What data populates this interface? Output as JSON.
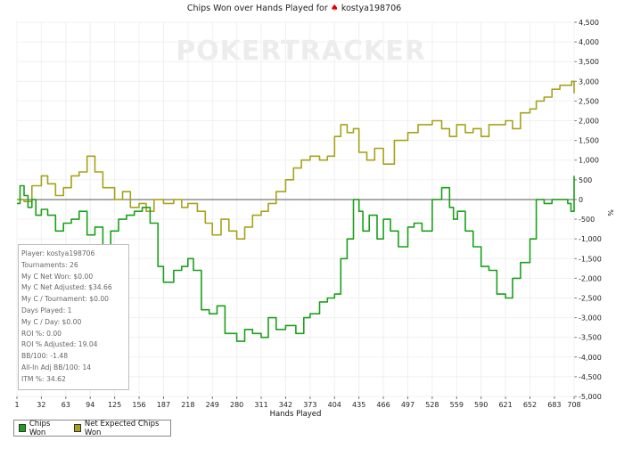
{
  "header": {
    "title_prefix": "Chips Won over Hands Played for",
    "suit_icon": "♠",
    "player": "kostya198706"
  },
  "watermark": {
    "text": "POKERTRACKER"
  },
  "stats": [
    "Player: kostya198706",
    "Tournaments: 26",
    "My C Net Won: $0.00",
    "My C Net Adjusted: $34.66",
    "My C / Tournament: $0.00",
    "Days Played: 1",
    "My C / Day: $0.00",
    "ROI %: 0.00",
    "ROI % Adjusted: 19.04",
    "BB/100: -1.48",
    "All-In Adj BB/100: 14",
    "ITM %: 34.62"
  ],
  "legend": [
    {
      "label": "Chips Won",
      "color": "#1aa01a"
    },
    {
      "label": "Net Expected Chips Won",
      "color": "#a6a21a"
    }
  ],
  "chart_data": {
    "type": "line",
    "title": "Chips Won over Hands Played for kostya198706",
    "xlabel": "Hands Played",
    "ylabel": "",
    "y_unit_label": "%",
    "xlim": [
      1,
      708
    ],
    "ylim": [
      -5000,
      4500
    ],
    "x_ticks": [
      1,
      32,
      63,
      94,
      125,
      156,
      187,
      218,
      249,
      280,
      311,
      342,
      373,
      404,
      435,
      466,
      497,
      528,
      559,
      590,
      621,
      652,
      683,
      708
    ],
    "y_ticks": [
      4500,
      4000,
      3500,
      3000,
      2500,
      2000,
      1500,
      1000,
      500,
      0,
      -500,
      -1000,
      -1500,
      -2000,
      -2500,
      -3000,
      -3500,
      -4000,
      -4500,
      -5000
    ],
    "y_tick_labels": [
      "4,500",
      "4,000",
      "3,500",
      "3,000",
      "2,500",
      "2,000",
      "1,500",
      "1,000",
      "500",
      "0",
      "-500",
      "-1,000",
      "-1,500",
      "-2,000",
      "-2,500",
      "-3,000",
      "-3,500",
      "-4,000",
      "-4,500",
      "-5,000"
    ],
    "grid": true,
    "legend_position": "bottom-left",
    "series": [
      {
        "name": "Chips Won",
        "color": "#1aa01a",
        "x": [
          1,
          5,
          10,
          15,
          20,
          25,
          32,
          40,
          50,
          60,
          70,
          80,
          90,
          100,
          110,
          120,
          130,
          140,
          150,
          160,
          170,
          180,
          187,
          200,
          210,
          218,
          225,
          235,
          245,
          255,
          265,
          280,
          290,
          300,
          311,
          320,
          330,
          342,
          355,
          365,
          373,
          385,
          395,
          404,
          412,
          420,
          428,
          435,
          440,
          448,
          458,
          466,
          475,
          485,
          497,
          505,
          515,
          528,
          540,
          550,
          555,
          560,
          570,
          580,
          590,
          600,
          610,
          621,
          630,
          640,
          652,
          660,
          670,
          680,
          690,
          700,
          704,
          708
        ],
        "y": [
          -100,
          350,
          100,
          -200,
          0,
          -400,
          -250,
          -400,
          -800,
          -600,
          -500,
          -300,
          -900,
          -700,
          -1200,
          -800,
          -500,
          -400,
          -300,
          -200,
          -600,
          -1700,
          -2100,
          -1800,
          -1700,
          -1500,
          -1800,
          -2800,
          -2900,
          -2700,
          -3400,
          -3600,
          -3300,
          -3400,
          -3500,
          -3000,
          -3300,
          -3200,
          -3400,
          -3000,
          -2900,
          -2600,
          -2500,
          -2400,
          -1500,
          -1000,
          0,
          -300,
          -800,
          -400,
          -1000,
          -500,
          -800,
          -1200,
          -700,
          -600,
          -800,
          0,
          300,
          -200,
          -500,
          -300,
          -800,
          -1200,
          -1700,
          -1800,
          -2400,
          -2500,
          -2000,
          -1600,
          -1000,
          0,
          -100,
          0,
          0,
          -100,
          -300,
          600
        ]
      },
      {
        "name": "Net Expected Chips Won",
        "color": "#a6a21a",
        "x": [
          1,
          10,
          20,
          32,
          40,
          50,
          60,
          70,
          80,
          90,
          100,
          110,
          125,
          135,
          145,
          156,
          165,
          175,
          187,
          200,
          210,
          218,
          230,
          240,
          249,
          260,
          270,
          280,
          290,
          300,
          311,
          320,
          330,
          342,
          352,
          362,
          373,
          385,
          395,
          404,
          412,
          420,
          428,
          435,
          445,
          455,
          466,
          480,
          497,
          510,
          528,
          540,
          550,
          559,
          570,
          580,
          590,
          600,
          612,
          621,
          630,
          640,
          652,
          660,
          670,
          680,
          690,
          700,
          705,
          708
        ],
        "y": [
          0,
          -50,
          350,
          600,
          400,
          100,
          300,
          600,
          700,
          1100,
          700,
          300,
          0,
          200,
          -200,
          -100,
          -300,
          0,
          -100,
          0,
          -200,
          -100,
          -300,
          -600,
          -900,
          -500,
          -800,
          -1000,
          -700,
          -400,
          -300,
          -100,
          200,
          500,
          800,
          1000,
          1100,
          1000,
          1100,
          1600,
          1900,
          1700,
          1800,
          1200,
          1000,
          1300,
          900,
          1500,
          1700,
          1900,
          2000,
          1800,
          1600,
          1900,
          1700,
          1800,
          1600,
          1900,
          1900,
          2000,
          1800,
          2200,
          2300,
          2500,
          2600,
          2800,
          2900,
          2900,
          3000,
          2700
        ]
      }
    ]
  }
}
